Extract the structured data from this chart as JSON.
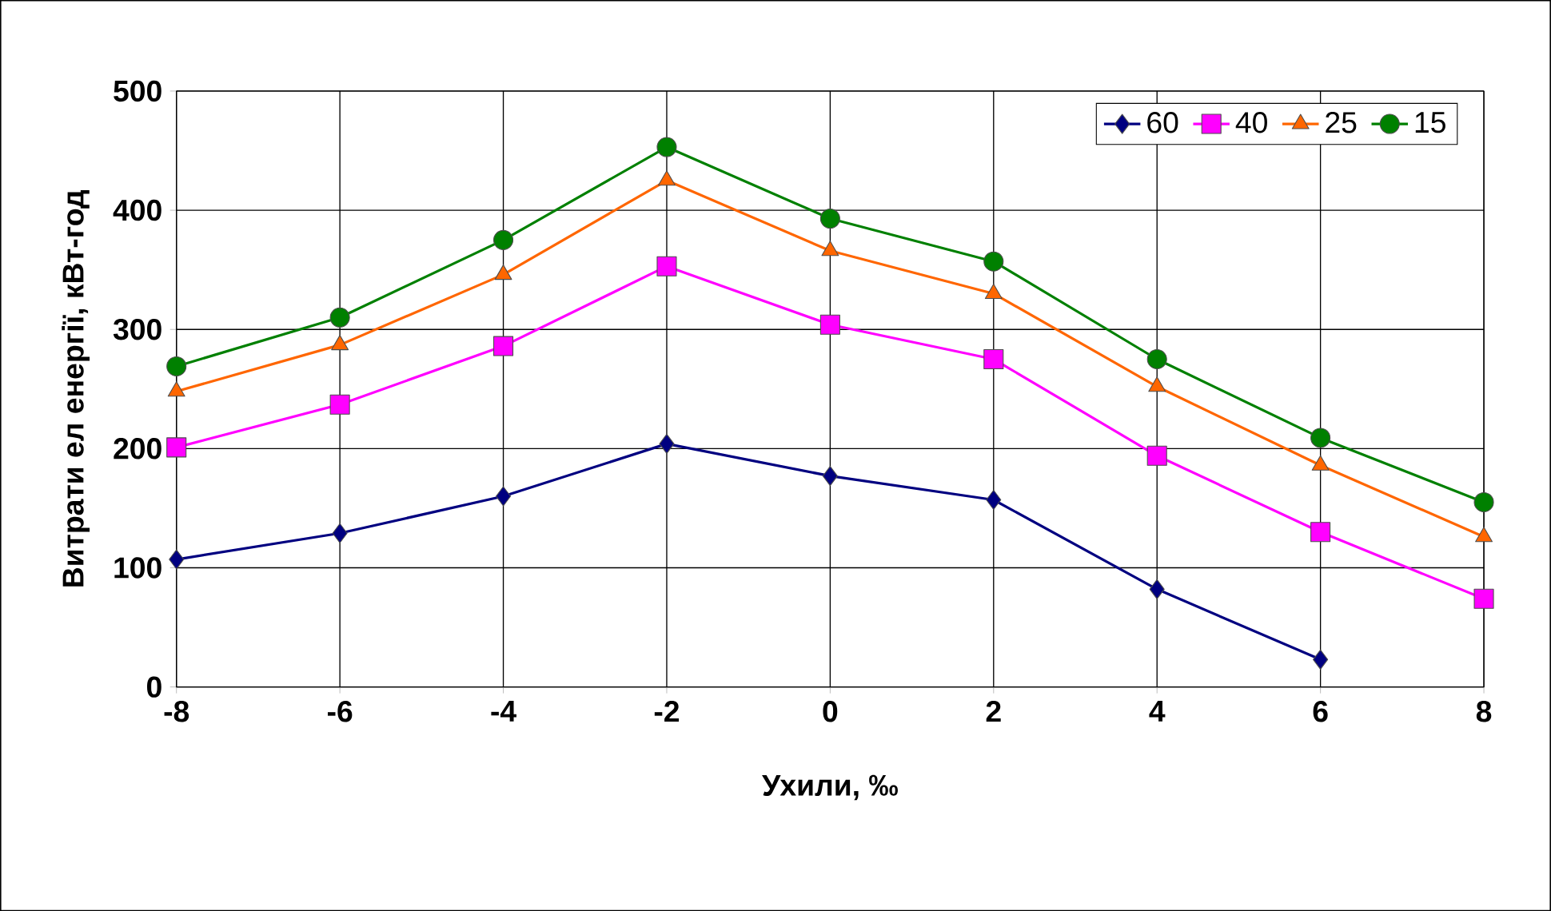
{
  "chart_data": {
    "type": "line",
    "xlabel": "Ухили, ‰",
    "ylabel": "Витрати ел енергії,  кВт-год",
    "x": [
      -8,
      -6,
      -4,
      -2,
      0,
      2,
      4,
      6,
      8
    ],
    "xlim": [
      -8,
      8
    ],
    "xticks": [
      -8,
      -6,
      -4,
      -2,
      0,
      2,
      4,
      6,
      8
    ],
    "ylim": [
      0,
      500
    ],
    "yticks": [
      0,
      100,
      200,
      300,
      400,
      500
    ],
    "grid": true,
    "legend": "top right",
    "line_style": "solid",
    "series": [
      {
        "name": "60",
        "color": "#000080",
        "marker": "diamond",
        "values": [
          107,
          129,
          160,
          204,
          177,
          157,
          82,
          23,
          null
        ]
      },
      {
        "name": "40",
        "color": "#ff00ff",
        "marker": "square",
        "values": [
          201,
          237,
          286,
          353,
          304,
          275,
          194,
          130,
          74
        ]
      },
      {
        "name": "25",
        "color": "#ff6600",
        "marker": "triangle",
        "values": [
          248,
          287,
          346,
          425,
          366,
          330,
          252,
          186,
          126
        ]
      },
      {
        "name": "15",
        "color": "#008000",
        "marker": "circle",
        "values": [
          269,
          310,
          375,
          453,
          393,
          357,
          275,
          209,
          155
        ]
      }
    ]
  }
}
